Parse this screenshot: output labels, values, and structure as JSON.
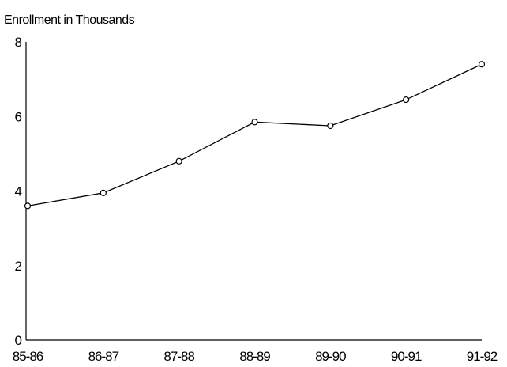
{
  "chart_data": {
    "type": "line",
    "title": "",
    "ylabel": "Enrollment in Thousands",
    "xlabel": "",
    "categories": [
      "85-86",
      "86-87",
      "87-88",
      "88-89",
      "89-90",
      "90-91",
      "91-92"
    ],
    "category_labels": [
      "85-86",
      "86-87",
      "87-88",
      "88-89",
      "89-90",
      "90-91",
      "91-92"
    ],
    "series": [
      {
        "values": [
          3.6,
          3.95,
          4.8,
          5.85,
          5.75,
          6.45,
          7.4
        ]
      }
    ],
    "ylim": [
      0,
      8
    ],
    "yticks": [
      0,
      2,
      4,
      6,
      8
    ],
    "grid": false,
    "legend": "none",
    "marker": "open-circle",
    "colors": {
      "line": "#000000",
      "marker_fill": "#ffffff",
      "axis": "#000000"
    }
  }
}
